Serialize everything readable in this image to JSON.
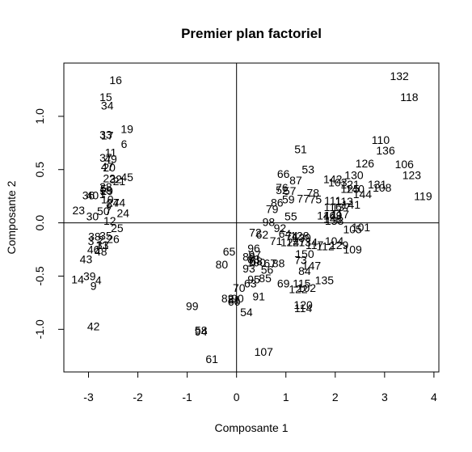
{
  "chart_data": {
    "type": "scatter",
    "title": "Premier plan factoriel",
    "xlabel": "Composante 1",
    "ylabel": "Composante 2",
    "xlim": [
      -3.5,
      4.1
    ],
    "ylim": [
      -1.4,
      1.5
    ],
    "xticks": [
      -3,
      -2,
      -1,
      0,
      1,
      2,
      3,
      4
    ],
    "yticks": [
      -1.0,
      -0.5,
      0.0,
      0.5,
      1.0
    ],
    "xtick_labels": [
      "-3",
      "-2",
      "-1",
      "0",
      "1",
      "2",
      "3",
      "4"
    ],
    "ytick_labels": [
      "-1.0",
      "-0.5",
      "0.0",
      "0.5",
      "1.0"
    ],
    "reference_lines": {
      "x": 0,
      "y": 0
    },
    "grid": false,
    "marker": "text labels",
    "points": [
      {
        "label": "16",
        "x": -2.45,
        "y": 1.34
      },
      {
        "label": "15",
        "x": -2.65,
        "y": 1.18
      },
      {
        "label": "34",
        "x": -2.62,
        "y": 1.1
      },
      {
        "label": "19",
        "x": -2.22,
        "y": 0.88
      },
      {
        "label": "33",
        "x": -2.65,
        "y": 0.83
      },
      {
        "label": "17",
        "x": -2.62,
        "y": 0.82
      },
      {
        "label": "6",
        "x": -2.28,
        "y": 0.74
      },
      {
        "label": "11",
        "x": -2.55,
        "y": 0.66
      },
      {
        "label": "37",
        "x": -2.65,
        "y": 0.61
      },
      {
        "label": "49",
        "x": -2.55,
        "y": 0.6
      },
      {
        "label": "47",
        "x": -2.62,
        "y": 0.53
      },
      {
        "label": "20",
        "x": -2.58,
        "y": 0.52
      },
      {
        "label": "22",
        "x": -2.58,
        "y": 0.42
      },
      {
        "label": "45",
        "x": -2.22,
        "y": 0.43
      },
      {
        "label": "32",
        "x": -2.45,
        "y": 0.41
      },
      {
        "label": "21",
        "x": -2.38,
        "y": 0.39
      },
      {
        "label": "28",
        "x": -2.65,
        "y": 0.34
      },
      {
        "label": "18",
        "x": -2.65,
        "y": 0.31
      },
      {
        "label": "5",
        "x": -2.7,
        "y": 0.32
      },
      {
        "label": "29",
        "x": -2.63,
        "y": 0.3
      },
      {
        "label": "36",
        "x": -3.0,
        "y": 0.26
      },
      {
        "label": "40",
        "x": -2.92,
        "y": 0.26
      },
      {
        "label": "1",
        "x": -2.72,
        "y": 0.27
      },
      {
        "label": "10",
        "x": -2.62,
        "y": 0.22
      },
      {
        "label": "44",
        "x": -2.38,
        "y": 0.19
      },
      {
        "label": "8",
        "x": -2.58,
        "y": 0.18
      },
      {
        "label": "27",
        "x": -2.5,
        "y": 0.19
      },
      {
        "label": "23",
        "x": -3.2,
        "y": 0.12
      },
      {
        "label": "50",
        "x": -2.7,
        "y": 0.11
      },
      {
        "label": "7",
        "x": -2.6,
        "y": 0.11
      },
      {
        "label": "24",
        "x": -2.3,
        "y": 0.09
      },
      {
        "label": "30",
        "x": -2.92,
        "y": 0.06
      },
      {
        "label": "12",
        "x": -2.57,
        "y": 0.02
      },
      {
        "label": "25",
        "x": -2.42,
        "y": -0.05
      },
      {
        "label": "38",
        "x": -2.88,
        "y": -0.13
      },
      {
        "label": "35",
        "x": -2.65,
        "y": -0.12
      },
      {
        "label": "26",
        "x": -2.5,
        "y": -0.15
      },
      {
        "label": "3",
        "x": -2.95,
        "y": -0.17
      },
      {
        "label": "2",
        "x": -2.75,
        "y": -0.16
      },
      {
        "label": "13",
        "x": -2.72,
        "y": -0.21
      },
      {
        "label": "46",
        "x": -2.9,
        "y": -0.25
      },
      {
        "label": "31",
        "x": -2.72,
        "y": -0.21
      },
      {
        "label": "48",
        "x": -2.75,
        "y": -0.27
      },
      {
        "label": "43",
        "x": -3.05,
        "y": -0.34
      },
      {
        "label": "39",
        "x": -2.98,
        "y": -0.5
      },
      {
        "label": "14",
        "x": -3.22,
        "y": -0.53
      },
      {
        "label": "4",
        "x": -2.8,
        "y": -0.54
      },
      {
        "label": "9",
        "x": -2.9,
        "y": -0.59
      },
      {
        "label": "42",
        "x": -2.9,
        "y": -0.97
      },
      {
        "label": "132",
        "x": 3.3,
        "y": 1.38
      },
      {
        "label": "118",
        "x": 3.5,
        "y": 1.18
      },
      {
        "label": "110",
        "x": 2.92,
        "y": 0.78
      },
      {
        "label": "136",
        "x": 3.02,
        "y": 0.68
      },
      {
        "label": "51",
        "x": 1.3,
        "y": 0.69
      },
      {
        "label": "126",
        "x": 2.6,
        "y": 0.56
      },
      {
        "label": "106",
        "x": 3.4,
        "y": 0.55
      },
      {
        "label": "53",
        "x": 1.45,
        "y": 0.5
      },
      {
        "label": "123",
        "x": 3.55,
        "y": 0.45
      },
      {
        "label": "66",
        "x": 0.95,
        "y": 0.46
      },
      {
        "label": "130",
        "x": 2.38,
        "y": 0.45
      },
      {
        "label": "87",
        "x": 1.2,
        "y": 0.4
      },
      {
        "label": "142",
        "x": 1.95,
        "y": 0.41
      },
      {
        "label": "103",
        "x": 2.05,
        "y": 0.38
      },
      {
        "label": "121",
        "x": 2.3,
        "y": 0.36
      },
      {
        "label": "131",
        "x": 2.85,
        "y": 0.36
      },
      {
        "label": "76",
        "x": 0.92,
        "y": 0.33
      },
      {
        "label": "125",
        "x": 2.3,
        "y": 0.32
      },
      {
        "label": "140",
        "x": 2.4,
        "y": 0.32
      },
      {
        "label": "108",
        "x": 2.95,
        "y": 0.33
      },
      {
        "label": "52",
        "x": 0.92,
        "y": 0.31
      },
      {
        "label": "57",
        "x": 1.08,
        "y": 0.3
      },
      {
        "label": "78",
        "x": 1.55,
        "y": 0.28
      },
      {
        "label": "144",
        "x": 2.55,
        "y": 0.27
      },
      {
        "label": "119",
        "x": 3.78,
        "y": 0.25
      },
      {
        "label": "59",
        "x": 1.05,
        "y": 0.22
      },
      {
        "label": "77",
        "x": 1.35,
        "y": 0.23
      },
      {
        "label": "75",
        "x": 1.6,
        "y": 0.22
      },
      {
        "label": "111",
        "x": 1.95,
        "y": 0.21
      },
      {
        "label": "113",
        "x": 2.18,
        "y": 0.2
      },
      {
        "label": "86",
        "x": 0.82,
        "y": 0.19
      },
      {
        "label": "116",
        "x": 1.95,
        "y": 0.15
      },
      {
        "label": "141",
        "x": 2.32,
        "y": 0.17
      },
      {
        "label": "137",
        "x": 2.12,
        "y": 0.15
      },
      {
        "label": "79",
        "x": 0.72,
        "y": 0.13
      },
      {
        "label": "146",
        "x": 1.82,
        "y": 0.07
      },
      {
        "label": "149",
        "x": 1.95,
        "y": 0.07
      },
      {
        "label": "117",
        "x": 2.1,
        "y": 0.08
      },
      {
        "label": "55",
        "x": 1.1,
        "y": 0.06
      },
      {
        "label": "148",
        "x": 1.95,
        "y": 0.04
      },
      {
        "label": "138",
        "x": 1.98,
        "y": 0.02
      },
      {
        "label": "98",
        "x": 0.65,
        "y": 0.01
      },
      {
        "label": "101",
        "x": 2.52,
        "y": -0.04
      },
      {
        "label": "105",
        "x": 2.35,
        "y": -0.06
      },
      {
        "label": "92",
        "x": 0.88,
        "y": -0.05
      },
      {
        "label": "72",
        "x": 0.38,
        "y": -0.09
      },
      {
        "label": "62",
        "x": 0.52,
        "y": -0.11
      },
      {
        "label": "64",
        "x": 0.98,
        "y": -0.1
      },
      {
        "label": "74",
        "x": 1.12,
        "y": -0.12
      },
      {
        "label": "128",
        "x": 1.28,
        "y": -0.12
      },
      {
        "label": "139",
        "x": 1.32,
        "y": -0.14
      },
      {
        "label": "71",
        "x": 0.8,
        "y": -0.17
      },
      {
        "label": "124",
        "x": 1.08,
        "y": -0.18
      },
      {
        "label": "127",
        "x": 1.2,
        "y": -0.18
      },
      {
        "label": "134",
        "x": 1.45,
        "y": -0.18
      },
      {
        "label": "104",
        "x": 1.98,
        "y": -0.17
      },
      {
        "label": "117",
        "x": 1.58,
        "y": -0.21
      },
      {
        "label": "112",
        "x": 1.8,
        "y": -0.22
      },
      {
        "label": "129",
        "x": 2.08,
        "y": -0.21
      },
      {
        "label": "109",
        "x": 2.35,
        "y": -0.25
      },
      {
        "label": "96",
        "x": 0.35,
        "y": -0.24
      },
      {
        "label": "65",
        "x": -0.15,
        "y": -0.27
      },
      {
        "label": "97",
        "x": 0.37,
        "y": -0.3
      },
      {
        "label": "150",
        "x": 1.38,
        "y": -0.29
      },
      {
        "label": "89",
        "x": 0.25,
        "y": -0.32
      },
      {
        "label": "83",
        "x": 0.35,
        "y": -0.34
      },
      {
        "label": "68",
        "x": 0.4,
        "y": -0.36
      },
      {
        "label": "73",
        "x": 1.3,
        "y": -0.35
      },
      {
        "label": "80",
        "x": -0.3,
        "y": -0.39
      },
      {
        "label": "100",
        "x": 0.4,
        "y": -0.37
      },
      {
        "label": "67",
        "x": 0.68,
        "y": -0.38
      },
      {
        "label": "88",
        "x": 0.85,
        "y": -0.38
      },
      {
        "label": "147",
        "x": 1.52,
        "y": -0.4
      },
      {
        "label": "93",
        "x": 0.25,
        "y": -0.43
      },
      {
        "label": "84",
        "x": 1.38,
        "y": -0.45
      },
      {
        "label": "56",
        "x": 0.62,
        "y": -0.44
      },
      {
        "label": "135",
        "x": 1.78,
        "y": -0.54
      },
      {
        "label": "95",
        "x": 0.35,
        "y": -0.53
      },
      {
        "label": "85",
        "x": 0.58,
        "y": -0.52
      },
      {
        "label": "63",
        "x": 0.28,
        "y": -0.57
      },
      {
        "label": "69",
        "x": 0.95,
        "y": -0.57
      },
      {
        "label": "115",
        "x": 1.32,
        "y": -0.57
      },
      {
        "label": "122",
        "x": 1.25,
        "y": -0.62
      },
      {
        "label": "102",
        "x": 1.42,
        "y": -0.61
      },
      {
        "label": "70",
        "x": 0.05,
        "y": -0.61
      },
      {
        "label": "91",
        "x": 0.45,
        "y": -0.69
      },
      {
        "label": "82",
        "x": -0.18,
        "y": -0.71
      },
      {
        "label": "90",
        "x": 0.02,
        "y": -0.71
      },
      {
        "label": "81",
        "x": -0.05,
        "y": -0.72
      },
      {
        "label": "60",
        "x": -0.05,
        "y": -0.74
      },
      {
        "label": "99",
        "x": -0.9,
        "y": -0.78
      },
      {
        "label": "120",
        "x": 1.35,
        "y": -0.77
      },
      {
        "label": "114",
        "x": 1.35,
        "y": -0.8
      },
      {
        "label": "54",
        "x": 0.2,
        "y": -0.84
      },
      {
        "label": "58",
        "x": -0.72,
        "y": -1.01
      },
      {
        "label": "94",
        "x": -0.72,
        "y": -1.02
      },
      {
        "label": "107",
        "x": 0.55,
        "y": -1.21
      },
      {
        "label": "61",
        "x": -0.5,
        "y": -1.28
      }
    ]
  }
}
